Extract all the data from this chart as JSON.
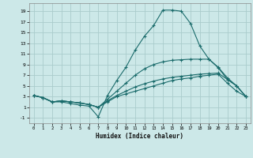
{
  "xlabel": "Humidex (Indice chaleur)",
  "background_color": "#cce8e8",
  "grid_color": "#aacccc",
  "line_color": "#1a6b6b",
  "xlim": [
    -0.5,
    23.5
  ],
  "ylim": [
    -2.0,
    20.5
  ],
  "xticks": [
    0,
    1,
    2,
    3,
    4,
    5,
    6,
    7,
    8,
    9,
    10,
    11,
    12,
    13,
    14,
    15,
    16,
    17,
    18,
    19,
    20,
    21,
    22,
    23
  ],
  "yticks": [
    -1,
    1,
    3,
    5,
    7,
    9,
    11,
    13,
    15,
    17,
    19
  ],
  "series": [
    {
      "x": [
        0,
        1,
        2,
        3,
        4,
        5,
        6,
        7,
        8,
        9,
        10,
        11,
        12,
        13,
        14,
        15,
        16,
        17,
        18,
        19,
        20,
        21,
        22,
        23
      ],
      "y": [
        3.2,
        2.8,
        2.0,
        2.0,
        1.7,
        1.4,
        1.2,
        -0.8,
        3.2,
        6.0,
        8.5,
        11.7,
        14.3,
        16.3,
        19.2,
        19.2,
        19.0,
        16.7,
        12.5,
        10.0,
        8.4,
        6.2,
        5.0,
        3.0
      ],
      "has_marker": true
    },
    {
      "x": [
        0,
        1,
        2,
        3,
        4,
        5,
        6,
        7,
        8,
        9,
        10,
        11,
        12,
        13,
        14,
        15,
        16,
        17,
        18,
        19,
        20,
        21,
        22,
        23
      ],
      "y": [
        3.2,
        2.8,
        2.0,
        2.2,
        2.0,
        1.8,
        1.5,
        1.0,
        2.5,
        4.0,
        5.5,
        7.0,
        8.2,
        9.0,
        9.5,
        9.8,
        9.9,
        10.0,
        10.0,
        10.0,
        8.5,
        6.5,
        5.0,
        3.0
      ],
      "has_marker": true
    },
    {
      "x": [
        0,
        1,
        2,
        3,
        4,
        5,
        6,
        7,
        8,
        9,
        10,
        11,
        12,
        13,
        14,
        15,
        16,
        17,
        18,
        19,
        20,
        21,
        22,
        23
      ],
      "y": [
        3.2,
        2.8,
        2.0,
        2.2,
        2.0,
        1.8,
        1.5,
        1.0,
        2.2,
        3.2,
        4.0,
        4.8,
        5.4,
        5.9,
        6.3,
        6.6,
        6.8,
        7.0,
        7.2,
        7.3,
        7.4,
        6.2,
        5.0,
        3.0
      ],
      "has_marker": false
    },
    {
      "x": [
        0,
        1,
        2,
        3,
        4,
        5,
        6,
        7,
        8,
        9,
        10,
        11,
        12,
        13,
        14,
        15,
        16,
        17,
        18,
        19,
        20,
        21,
        22,
        23
      ],
      "y": [
        3.2,
        2.8,
        2.0,
        2.2,
        2.0,
        1.8,
        1.5,
        1.0,
        2.0,
        3.0,
        3.5,
        4.0,
        4.5,
        5.0,
        5.5,
        6.0,
        6.3,
        6.5,
        6.8,
        7.0,
        7.2,
        5.5,
        4.0,
        3.0
      ],
      "has_marker": false
    }
  ]
}
